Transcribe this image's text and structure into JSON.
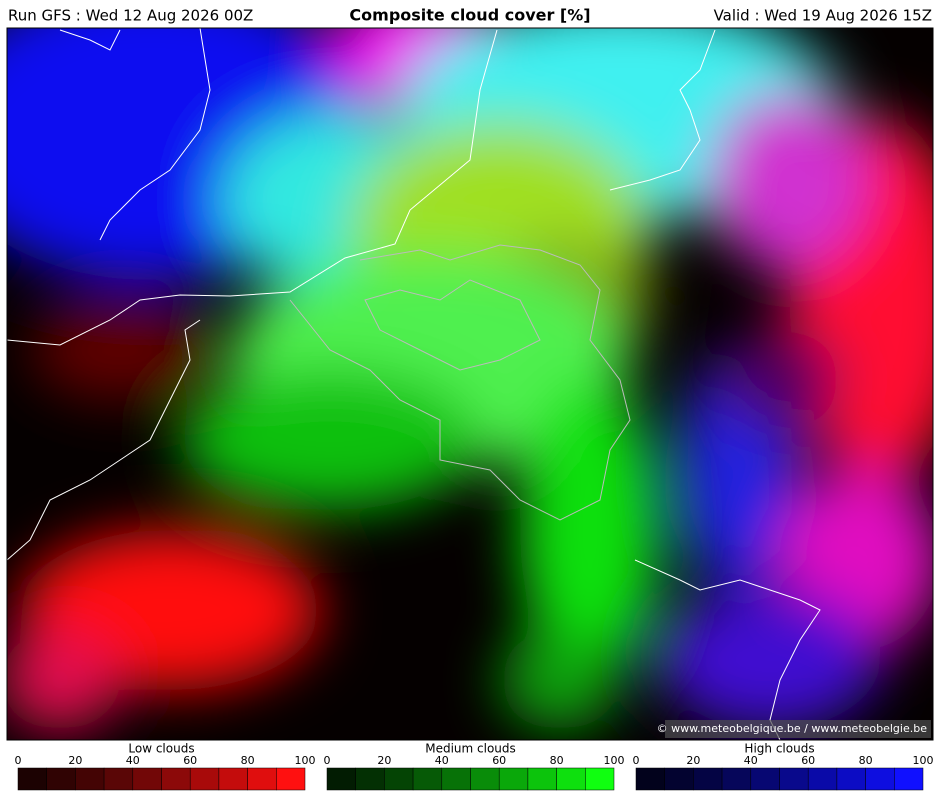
{
  "header": {
    "run": "Run GFS : Wed 12 Aug 2026 00Z",
    "title": "Composite cloud cover [%]",
    "valid": "Valid : Wed 19 Aug 2026 15Z"
  },
  "copyright": "© www.meteobelgique.be / www.meteobelgie.be",
  "legends": [
    {
      "title": "Low clouds",
      "ticks": [
        0,
        20,
        40,
        60,
        80,
        100
      ],
      "colors": [
        "#1c0202",
        "#300303",
        "#440404",
        "#5a0606",
        "#720707",
        "#8c0909",
        "#a80a0a",
        "#c40c0c",
        "#e00e0e",
        "#ff1010"
      ]
    },
    {
      "title": "Medium clouds",
      "ticks": [
        0,
        20,
        40,
        60,
        80,
        100
      ],
      "colors": [
        "#021c02",
        "#033003",
        "#044404",
        "#065a06",
        "#077207",
        "#098c09",
        "#0aa80a",
        "#0cc40c",
        "#0ee00e",
        "#10ff10"
      ]
    },
    {
      "title": "High clouds",
      "ticks": [
        0,
        20,
        40,
        60,
        80,
        100
      ],
      "colors": [
        "#02021c",
        "#030330",
        "#040444",
        "#06065a",
        "#070772",
        "#09098c",
        "#0a0aa8",
        "#0c0cc4",
        "#0e0ee0",
        "#1010ff"
      ]
    }
  ]
}
